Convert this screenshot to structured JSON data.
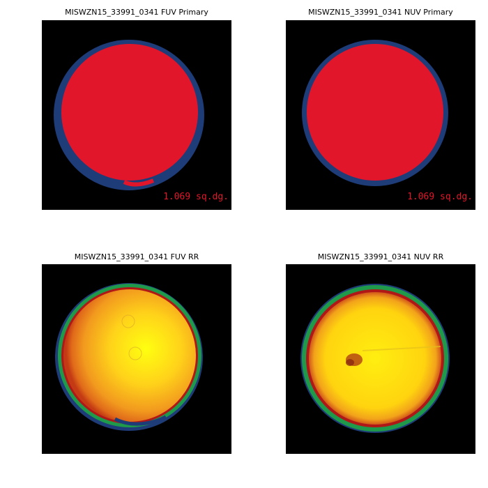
{
  "panels": {
    "fuv_primary": {
      "title": "MISWZN15_33991_0341 FUV Primary",
      "area_label": "1.069 sq.dg."
    },
    "nuv_primary": {
      "title": "MISWZN15_33991_0341 NUV Primary",
      "area_label": "1.069 sq.dg."
    },
    "fuv_rr": {
      "title": "MISWZN15_33991_0341 FUV RR"
    },
    "nuv_rr": {
      "title": "MISWZN15_33991_0341 NUV RR"
    }
  },
  "colors": {
    "background": "#000000",
    "primary_fill": "#e2162b",
    "primary_rim": "#1e3c78",
    "rr_center": "#ffff00",
    "rr_edge_red": "#b01818",
    "rr_edge_green": "#1f9a4a",
    "rr_edge_blue": "#1e3c78"
  }
}
